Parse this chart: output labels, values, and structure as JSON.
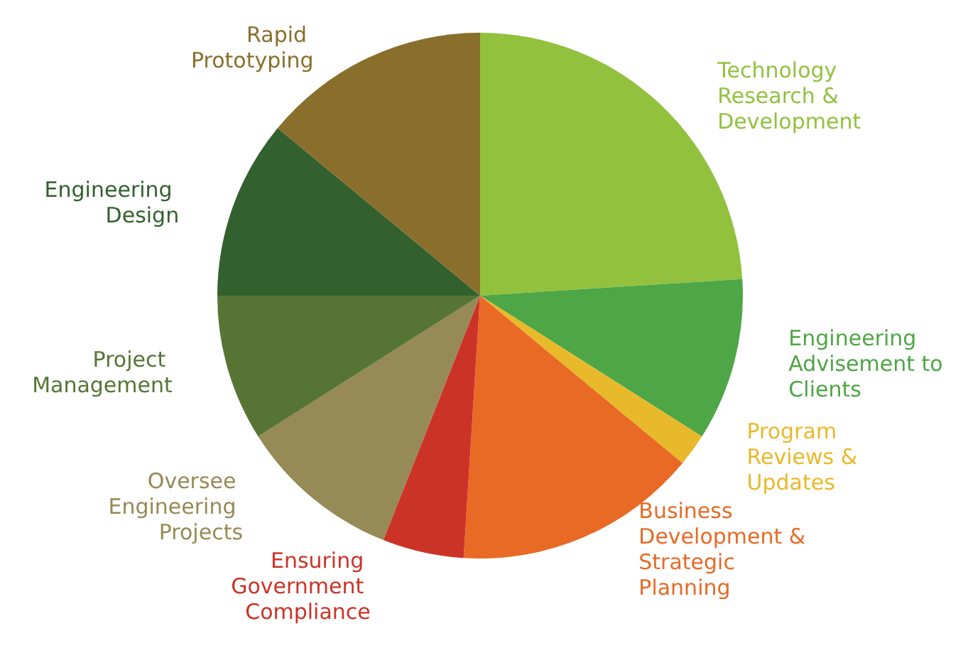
{
  "chart_data": {
    "type": "pie",
    "categories": [
      "Technology Research & Development",
      "Engineering Advisement to Clients",
      "Program Reviews & Updates",
      "Business Development & Strategic Planning",
      "Ensuring Government Compliance",
      "Oversee Engineering Projects",
      "Project Management",
      "Engineering Design",
      "Rapid Prototyping"
    ],
    "values": [
      24,
      10,
      2,
      15,
      5,
      10,
      9,
      11,
      14
    ],
    "colors": [
      "#92c13e",
      "#4ea646",
      "#e8b92a",
      "#e86a25",
      "#cc3327",
      "#968a56",
      "#567535",
      "#33602f",
      "#896f2b"
    ],
    "legend": false
  }
}
